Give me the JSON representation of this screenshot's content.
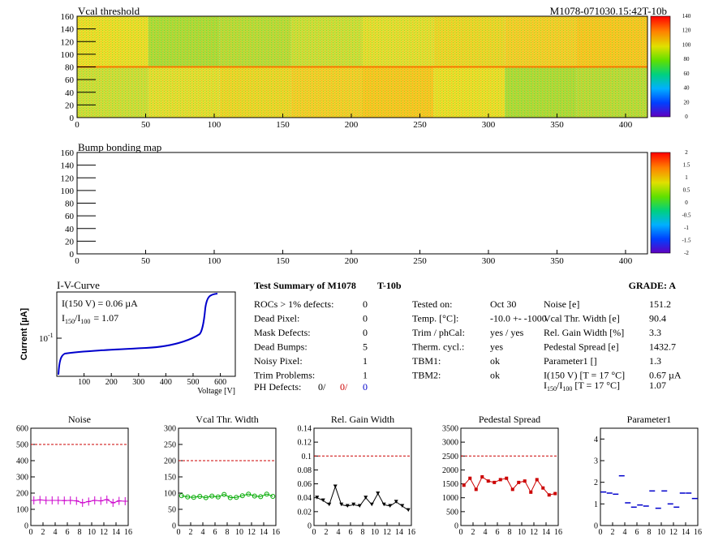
{
  "colors": {
    "line_blue": "#0000cc",
    "noise": "#cc00cc",
    "vcal": "#00aa00",
    "gain": "#000000",
    "ped": "#cc0000",
    "param": "#0000cc",
    "ref": "#cc0000"
  },
  "top_map": {
    "title": "Vcal threshold",
    "module_label": "M1078-071030.15:42T-10b",
    "x_ticks": [
      "0",
      "50",
      "100",
      "150",
      "200",
      "250",
      "300",
      "350",
      "400"
    ],
    "y_ticks": [
      "0",
      "20",
      "40",
      "60",
      "80",
      "100",
      "120",
      "140",
      "160"
    ],
    "palette_ticks": [
      "0",
      "20",
      "40",
      "60",
      "80",
      "100",
      "120",
      "140"
    ]
  },
  "bump_map": {
    "title": "Bump bonding map",
    "x_ticks": [
      "0",
      "50",
      "100",
      "150",
      "200",
      "250",
      "300",
      "350",
      "400"
    ],
    "y_ticks": [
      "0",
      "20",
      "40",
      "60",
      "80",
      "100",
      "120",
      "140",
      "160"
    ],
    "palette_ticks": [
      "-2",
      "-1.5",
      "-1",
      "-0.5",
      "0",
      "0.5",
      "1",
      "1.5",
      "2"
    ]
  },
  "iv": {
    "title": "I-V-Curve",
    "ylabel": "Current [µA]",
    "xlabel": "Voltage [V]",
    "ytick": "10",
    "ytick_exp": "-1",
    "x_ticks": [
      "100",
      "200",
      "300",
      "400",
      "500",
      "600"
    ],
    "line1": "I(150 V) = 0.06 µA",
    "line2_prefix": "I",
    "line2_sub1": "150",
    "line2_mid": "/I",
    "line2_sub2": "100",
    "line2_value": "=  1.07"
  },
  "summary": {
    "title": "Test Summary of M1078",
    "tag": "T-10b",
    "grade_label": "GRADE:  A",
    "left_rows": [
      {
        "label": "ROCs > 1% defects:",
        "value": "0"
      },
      {
        "label": "Dead Pixel:",
        "value": "0"
      },
      {
        "label": "Mask Defects:",
        "value": "0"
      },
      {
        "label": "Dead Bumps:",
        "value": "5"
      },
      {
        "label": "Noisy Pixel:",
        "value": "1"
      },
      {
        "label": "Trim Problems:",
        "value": "1"
      }
    ],
    "ph_label": "PH Defects:",
    "ph_values": [
      "0/",
      "0/",
      "0"
    ],
    "mid_rows": [
      {
        "label": "Tested on:",
        "value": "Oct 30"
      },
      {
        "label": "Temp. [°C]:",
        "value": "-10.0 +- -1000"
      },
      {
        "label": "Trim / phCal:",
        "value": "yes / yes"
      },
      {
        "label": "Therm. cycl.:",
        "value": "yes"
      },
      {
        "label": "TBM1:",
        "value": "ok"
      },
      {
        "label": "TBM2:",
        "value": "ok"
      }
    ],
    "right_rows": [
      {
        "label": "Noise [e]",
        "value": "151.2"
      },
      {
        "label": "Vcal Thr. Width [e]",
        "value": "90.4"
      },
      {
        "label": "Rel. Gain Width [%]",
        "value": "3.3"
      },
      {
        "label": "Pedestal Spread [e]",
        "value": "1432.7"
      },
      {
        "label": "Parameter1 []",
        "value": "1.3"
      },
      {
        "label": "I(150 V) [T = 17 °C]",
        "value": "0.67 µA"
      }
    ],
    "ratio_label_prefix": "I",
    "ratio_sub1": "150",
    "ratio_mid": "/I",
    "ratio_sub2": "100",
    "ratio_tail": " [T = 17 °C]",
    "ratio_value": "1.07"
  },
  "chart_data": [
    {
      "type": "line",
      "title": "Noise",
      "x": [
        0,
        1,
        2,
        3,
        4,
        5,
        6,
        7,
        8,
        9,
        10,
        11,
        12,
        13,
        14,
        15
      ],
      "values": [
        155,
        158,
        155,
        155,
        155,
        154,
        155,
        152,
        140,
        148,
        155,
        152,
        160,
        140,
        152,
        150
      ],
      "ylim": [
        0,
        600
      ],
      "yticks": [
        0,
        100,
        200,
        300,
        400,
        500,
        600
      ],
      "ref": 500,
      "marker": "errbar"
    },
    {
      "type": "line",
      "title": "Vcal Thr. Width",
      "x": [
        0,
        1,
        2,
        3,
        4,
        5,
        6,
        7,
        8,
        9,
        10,
        11,
        12,
        13,
        14,
        15
      ],
      "values": [
        92,
        88,
        87,
        90,
        86,
        91,
        88,
        96,
        86,
        87,
        92,
        97,
        91,
        89,
        97,
        90
      ],
      "ylim": [
        0,
        300
      ],
      "yticks": [
        0,
        50,
        100,
        150,
        200,
        250,
        300
      ],
      "ref": 200,
      "marker": "circle"
    },
    {
      "type": "line",
      "title": "Rel. Gain Width",
      "x": [
        0,
        1,
        2,
        3,
        4,
        5,
        6,
        7,
        8,
        9,
        10,
        11,
        12,
        13,
        14,
        15
      ],
      "values": [
        0.04,
        0.036,
        0.03,
        0.056,
        0.03,
        0.028,
        0.03,
        0.028,
        0.04,
        0.03,
        0.046,
        0.03,
        0.028,
        0.034,
        0.028,
        0.022
      ],
      "ylim": [
        0,
        0.14
      ],
      "yticks": [
        0,
        0.02,
        0.04,
        0.06,
        0.08,
        0.1,
        0.12,
        0.14
      ],
      "ref": 0.1,
      "marker": "triangle"
    },
    {
      "type": "line",
      "title": "Pedestal Spread",
      "x": [
        0,
        1,
        2,
        3,
        4,
        5,
        6,
        7,
        8,
        9,
        10,
        11,
        12,
        13,
        14,
        15
      ],
      "values": [
        1450,
        1700,
        1300,
        1750,
        1600,
        1550,
        1650,
        1700,
        1300,
        1550,
        1600,
        1200,
        1650,
        1350,
        1100,
        1150
      ],
      "ylim": [
        0,
        3500
      ],
      "yticks": [
        0,
        500,
        1000,
        1500,
        2000,
        2500,
        3000,
        3500
      ],
      "ref": 2500,
      "marker": "square"
    },
    {
      "type": "scatter",
      "title": "Parameter1",
      "x": [
        0,
        1,
        2,
        3,
        4,
        5,
        6,
        7,
        8,
        9,
        10,
        11,
        12,
        13,
        14,
        15
      ],
      "values": [
        1.55,
        1.5,
        1.45,
        2.3,
        1.05,
        0.85,
        0.95,
        0.9,
        1.6,
        0.8,
        1.6,
        1.0,
        0.85,
        1.5,
        1.5,
        1.25
      ],
      "ylim": [
        0,
        4.5
      ],
      "yticks": [
        0,
        1,
        2,
        3,
        4
      ],
      "ref": null,
      "marker": "hbar"
    }
  ]
}
